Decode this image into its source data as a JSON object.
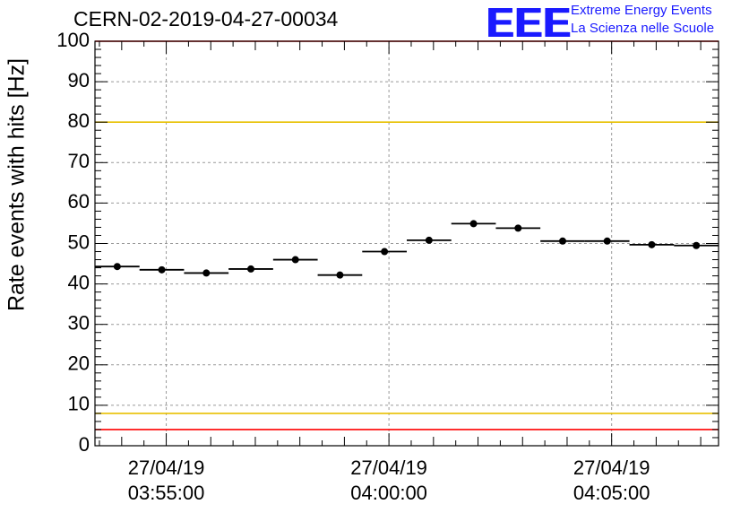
{
  "title": "CERN-02-2019-04-27-00034",
  "logo": {
    "mark": "EEE",
    "line1": "Extreme Energy Events",
    "line2": "La Scienza nelle Scuole",
    "color": "#1a1aff"
  },
  "chart_data": {
    "type": "scatter",
    "title": "CERN-02-2019-04-27-00034",
    "xlabel": "",
    "ylabel": "Rate events with hits [Hz]",
    "ylim": [
      0,
      100
    ],
    "yticks": [
      0,
      10,
      20,
      30,
      40,
      50,
      60,
      70,
      80,
      90,
      100
    ],
    "xlim": [
      "03:53:24",
      "04:07:24"
    ],
    "xticks": [
      {
        "t": "03:55:00",
        "date": "27/04/19",
        "time": "03:55:00"
      },
      {
        "t": "04:00:00",
        "date": "27/04/19",
        "time": "04:00:00"
      },
      {
        "t": "04:05:00",
        "date": "27/04/19",
        "time": "04:05:00"
      }
    ],
    "grid": true,
    "bin_width": "00:01:00",
    "series": [
      {
        "marker_color": "#000000",
        "x": [
          "03:53:54",
          "03:54:54",
          "03:55:54",
          "03:56:54",
          "03:57:54",
          "03:58:54",
          "03:59:54",
          "04:00:54",
          "04:01:54",
          "04:02:54",
          "04:03:54",
          "04:04:54",
          "04:05:54",
          "04:06:54"
        ],
        "y": [
          44.3,
          43.5,
          42.7,
          43.7,
          46.0,
          42.2,
          48.0,
          50.8,
          54.9,
          53.8,
          50.6,
          50.6,
          49.7,
          49.5
        ]
      }
    ],
    "reference_lines": [
      {
        "value": 80,
        "color": "#e8c000"
      },
      {
        "value": 8,
        "color": "#e8c000"
      },
      {
        "value": 4,
        "color": "#ff0000"
      },
      {
        "value": 100,
        "color": "#ff0000"
      }
    ]
  }
}
